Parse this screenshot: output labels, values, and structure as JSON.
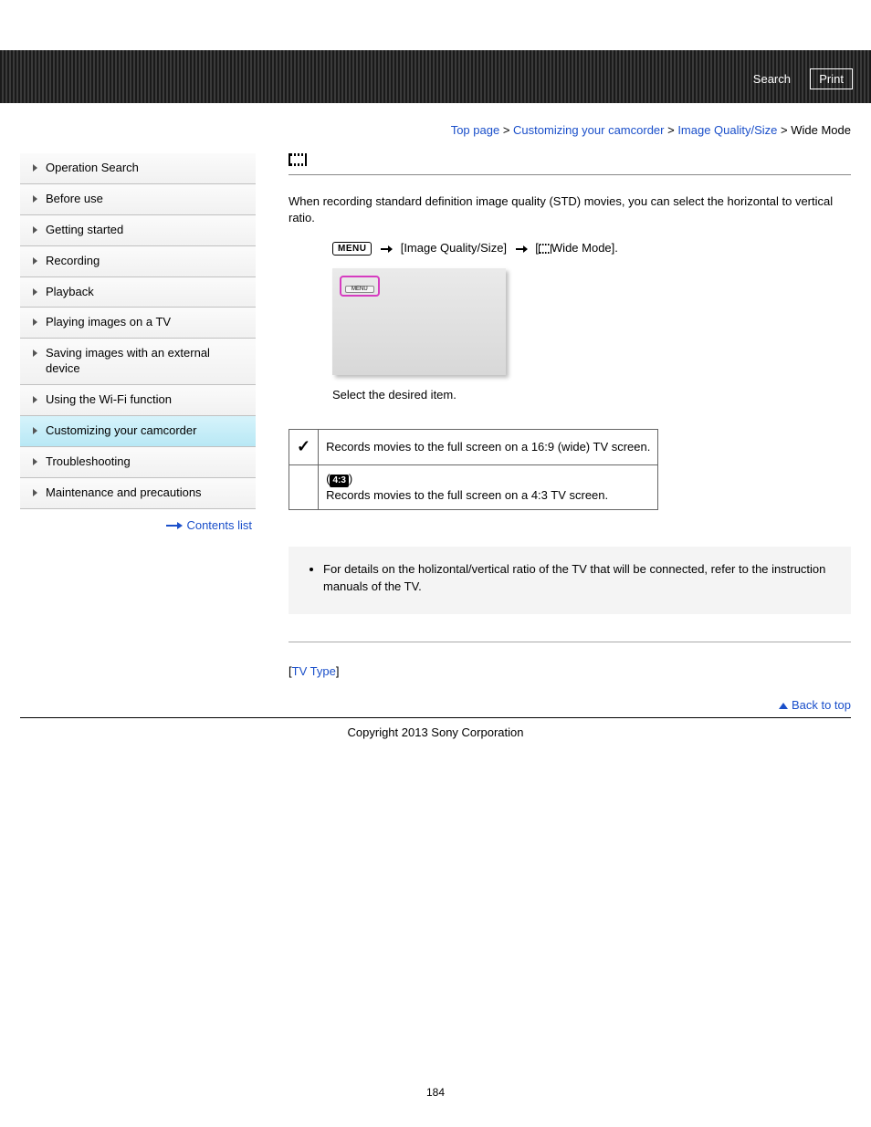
{
  "header": {
    "search_label": "Search",
    "print_label": "Print"
  },
  "breadcrumb": {
    "items": [
      "Top page",
      "Customizing your camcorder",
      "Image Quality/Size",
      "Wide Mode"
    ],
    "separator": " > "
  },
  "sidebar": {
    "items": [
      {
        "label": "Operation Search",
        "active": false
      },
      {
        "label": "Before use",
        "active": false
      },
      {
        "label": "Getting started",
        "active": false
      },
      {
        "label": "Recording",
        "active": false
      },
      {
        "label": "Playback",
        "active": false
      },
      {
        "label": "Playing images on a TV",
        "active": false
      },
      {
        "label": "Saving images with an external device",
        "active": false
      },
      {
        "label": "Using the Wi-Fi function",
        "active": false
      },
      {
        "label": "Customizing your camcorder",
        "active": true
      },
      {
        "label": "Troubleshooting",
        "active": false
      },
      {
        "label": "Maintenance and precautions",
        "active": false
      }
    ],
    "contents_list_label": "Contents list"
  },
  "main": {
    "intro": "When recording standard definition image quality (STD) movies, you can select the horizontal to vertical ratio.",
    "menu_label": "MENU",
    "nav_segment1": " [Image Quality/Size] ",
    "nav_segment2_prefix": " [",
    "nav_segment2_text": "Wide Mode].",
    "screen_menu_label": "MENU",
    "step_caption": "Select the desired item.",
    "options": [
      {
        "default": true,
        "ratio_badge": "",
        "text": "Records movies to the full screen on a 16:9 (wide) TV screen."
      },
      {
        "default": false,
        "ratio_badge": "4:3",
        "text": "Records movies to the full screen on a 4:3 TV screen."
      }
    ],
    "notes": [
      "For details on the holizontal/vertical ratio of the TV that will be connected, refer to the instruction manuals of the TV."
    ],
    "related_prefix": "[",
    "related_link": "TV Type",
    "related_suffix": "]"
  },
  "footer": {
    "back_to_top": "Back to top",
    "copyright": "Copyright 2013 Sony Corporation",
    "page_number": "184"
  },
  "colors": {
    "link": "#1a4fca",
    "highlight": "#d63cc0",
    "active_bg_top": "#d6f3fb",
    "active_bg_bottom": "#b8e8f5"
  }
}
